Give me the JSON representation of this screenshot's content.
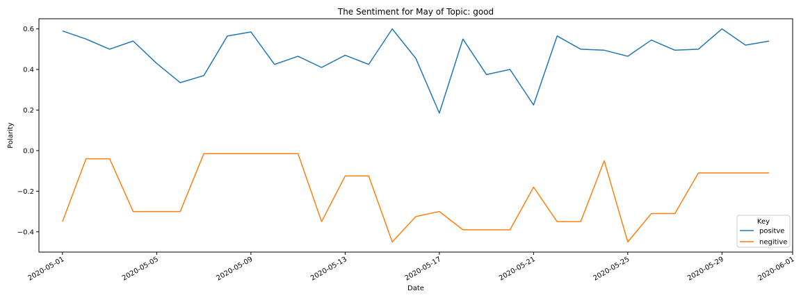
{
  "chart_data": {
    "type": "line",
    "title": "The Sentiment for May of Topic: good",
    "xlabel": "Date",
    "ylabel": "Polarity",
    "x_tick_labels": [
      "2020-05-01",
      "2020-05-05",
      "2020-05-09",
      "2020-05-13",
      "2020-05-17",
      "2020-05-21",
      "2020-05-25",
      "2020-05-29",
      "2020-06-01"
    ],
    "y_tick_labels": [
      "0.6",
      "0.4",
      "0.2",
      "0.0",
      "−0.2",
      "−0.4"
    ],
    "y_ticks": [
      0.6,
      0.4,
      0.2,
      0.0,
      -0.2,
      -0.4
    ],
    "xlim": [
      "2020-04-30",
      "2020-06-01"
    ],
    "ylim": [
      -0.5,
      0.65
    ],
    "legend": {
      "title": "Key",
      "placement": "lower-right"
    },
    "x": [
      "2020-05-01",
      "2020-05-02",
      "2020-05-03",
      "2020-05-04",
      "2020-05-05",
      "2020-05-06",
      "2020-05-07",
      "2020-05-08",
      "2020-05-09",
      "2020-05-10",
      "2020-05-11",
      "2020-05-12",
      "2020-05-13",
      "2020-05-14",
      "2020-05-15",
      "2020-05-16",
      "2020-05-17",
      "2020-05-18",
      "2020-05-19",
      "2020-05-20",
      "2020-05-21",
      "2020-05-22",
      "2020-05-23",
      "2020-05-24",
      "2020-05-25",
      "2020-05-26",
      "2020-05-27",
      "2020-05-28",
      "2020-05-29",
      "2020-05-30",
      "2020-05-31"
    ],
    "series": [
      {
        "name": "positve",
        "color": "#1f77b4",
        "values": [
          0.59,
          0.55,
          0.5,
          0.54,
          0.43,
          0.335,
          0.37,
          0.565,
          0.585,
          0.425,
          0.465,
          0.41,
          0.47,
          0.425,
          0.6,
          0.455,
          0.185,
          0.55,
          0.375,
          0.4,
          0.225,
          0.565,
          0.5,
          0.495,
          0.465,
          0.545,
          0.495,
          0.5,
          0.6,
          0.52,
          0.54
        ]
      },
      {
        "name": "negitive",
        "color": "#ff7f0e",
        "values": [
          -0.35,
          -0.04,
          -0.04,
          -0.3,
          -0.3,
          -0.3,
          -0.015,
          -0.015,
          -0.015,
          -0.015,
          -0.015,
          -0.35,
          -0.125,
          -0.125,
          -0.45,
          -0.325,
          -0.3,
          -0.39,
          -0.39,
          -0.39,
          -0.18,
          -0.35,
          -0.35,
          -0.05,
          -0.45,
          -0.31,
          -0.31,
          -0.11,
          -0.11,
          -0.11,
          -0.11
        ]
      }
    ]
  }
}
